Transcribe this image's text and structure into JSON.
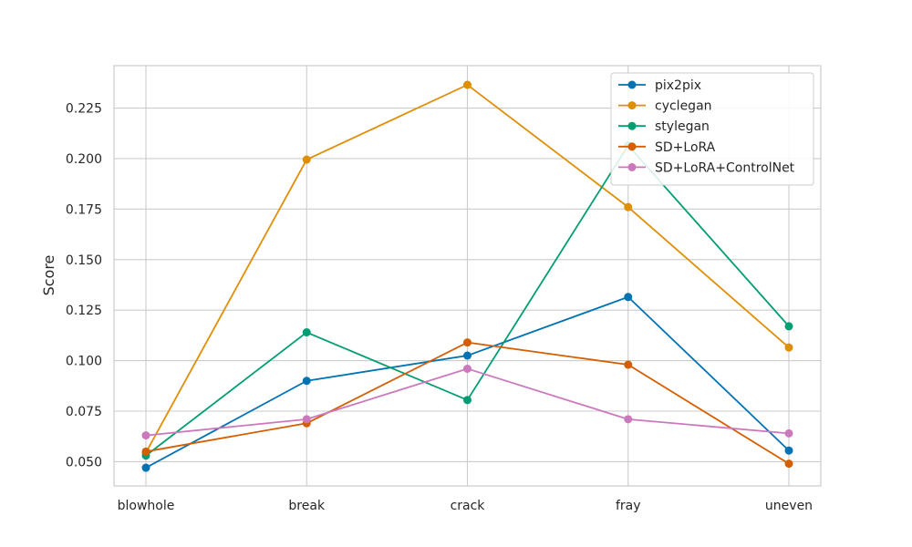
{
  "chart_data": {
    "type": "line",
    "title": "",
    "xlabel": "",
    "ylabel": "Score",
    "categories": [
      "blowhole",
      "break",
      "crack",
      "fray",
      "uneven"
    ],
    "ylim": [
      0.038,
      0.246
    ],
    "yticks": [
      0.05,
      0.075,
      0.1,
      0.125,
      0.15,
      0.175,
      0.2,
      0.225
    ],
    "ytick_labels": [
      "0.050",
      "0.075",
      "0.100",
      "0.125",
      "0.150",
      "0.175",
      "0.200",
      "0.225"
    ],
    "grid": true,
    "legend_position": "top-right",
    "series": [
      {
        "name": "pix2pix",
        "color": "#0173b2",
        "values": [
          0.047,
          0.09,
          0.1025,
          0.1315,
          0.0555
        ]
      },
      {
        "name": "cyclegan",
        "color": "#de8f05",
        "values": [
          0.0545,
          0.1995,
          0.2365,
          0.176,
          0.1065
        ]
      },
      {
        "name": "stylegan",
        "color": "#029e73",
        "values": [
          0.053,
          0.114,
          0.0805,
          0.2065,
          0.117
        ]
      },
      {
        "name": "SD+LoRA",
        "color": "#d55e00",
        "values": [
          0.055,
          0.069,
          0.109,
          0.098,
          0.049
        ]
      },
      {
        "name": "SD+LoRA+ControlNet",
        "color": "#cc78bc",
        "values": [
          0.063,
          0.071,
          0.096,
          0.071,
          0.064
        ]
      }
    ]
  }
}
